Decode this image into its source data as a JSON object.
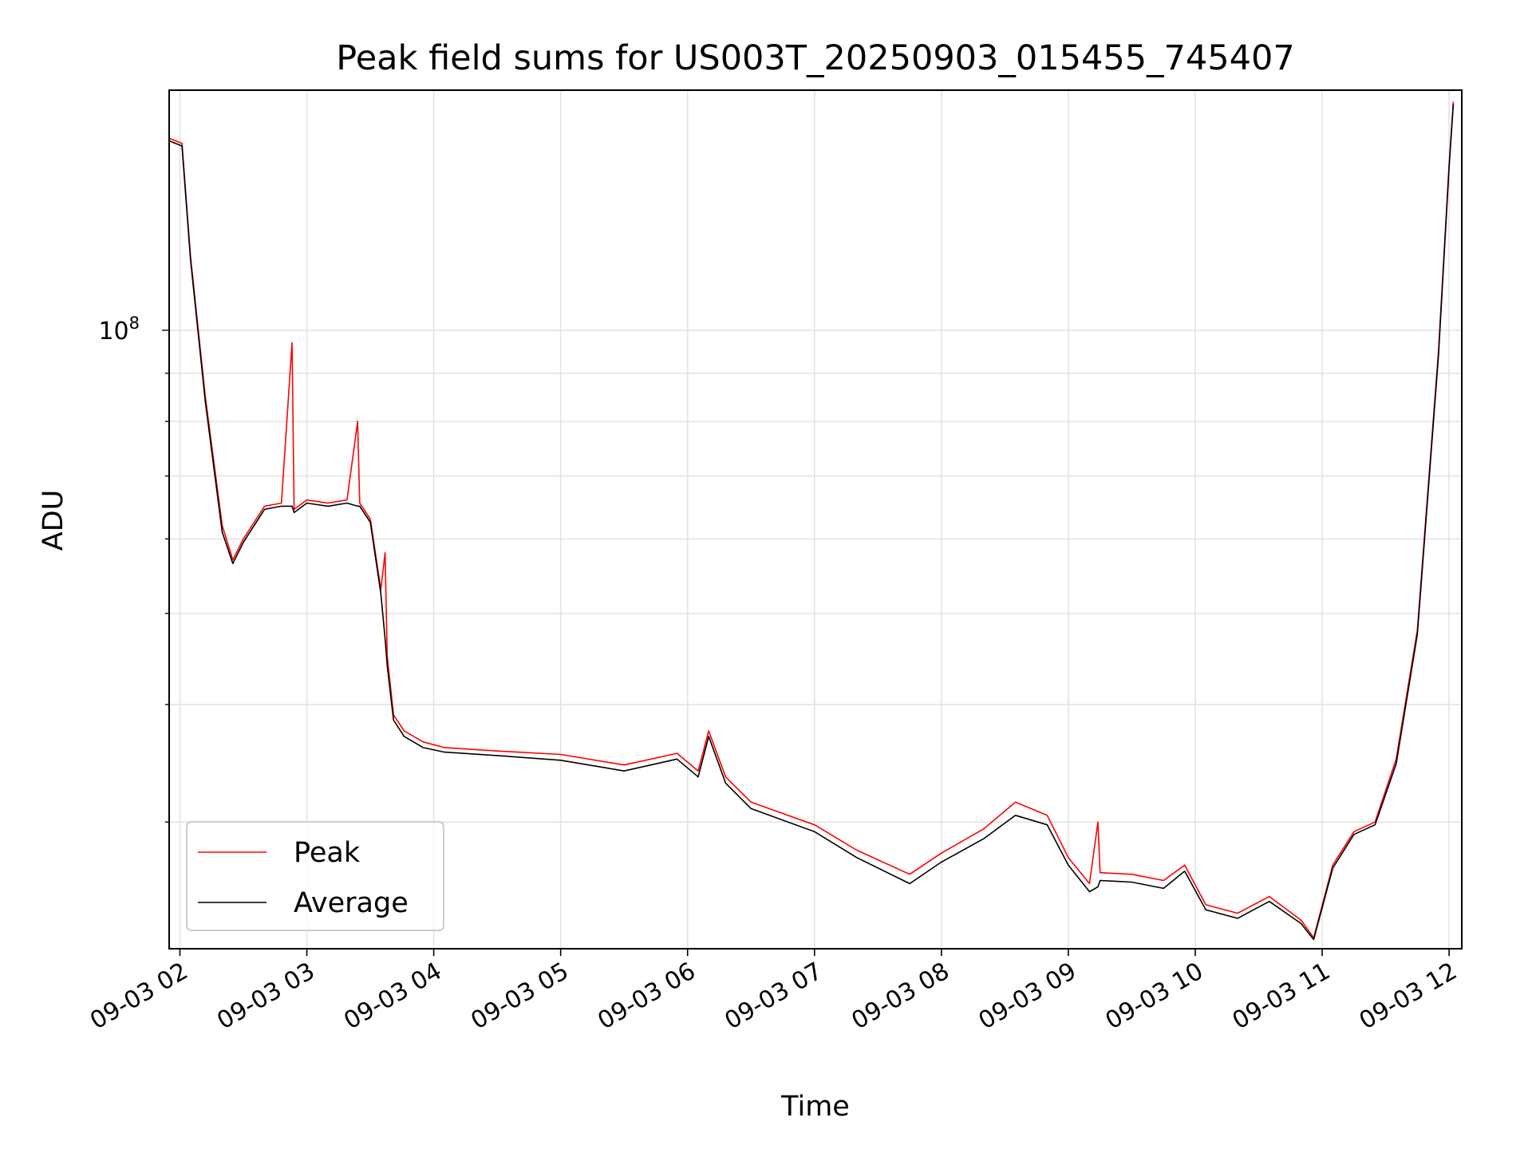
{
  "chart_data": {
    "type": "line",
    "title": "Peak field sums for US003T_20250903_015455_745407",
    "xlabel": "Time",
    "ylabel": "ADU",
    "y_scale": "log",
    "y_tick_label": {
      "base": "10",
      "exp": "8",
      "value": 100000000
    },
    "ylim": [
      22000000,
      180000000
    ],
    "xlim": [
      "2025-09-03 01:54:55",
      "2025-09-03 12:06:00"
    ],
    "x_ticks": [
      {
        "time": "2025-09-03 02:00",
        "label": "09-03 02"
      },
      {
        "time": "2025-09-03 03:00",
        "label": "09-03 03"
      },
      {
        "time": "2025-09-03 04:00",
        "label": "09-03 04"
      },
      {
        "time": "2025-09-03 05:00",
        "label": "09-03 05"
      },
      {
        "time": "2025-09-03 06:00",
        "label": "09-03 06"
      },
      {
        "time": "2025-09-03 07:00",
        "label": "09-03 07"
      },
      {
        "time": "2025-09-03 08:00",
        "label": "09-03 08"
      },
      {
        "time": "2025-09-03 09:00",
        "label": "09-03 09"
      },
      {
        "time": "2025-09-03 10:00",
        "label": "09-03 10"
      },
      {
        "time": "2025-09-03 11:00",
        "label": "09-03 11"
      },
      {
        "time": "2025-09-03 12:00",
        "label": "09-03 12"
      }
    ],
    "grid": true,
    "legend_position": "lower-left",
    "series": [
      {
        "name": "Peak",
        "color": "#ff0000",
        "points": [
          [
            "2025-09-03 01:54:55",
            160000000
          ],
          [
            "2025-09-03 02:01:00",
            158000000
          ],
          [
            "2025-09-03 02:05:00",
            120000000
          ],
          [
            "2025-09-03 02:12:00",
            85000000
          ],
          [
            "2025-09-03 02:20:00",
            62000000
          ],
          [
            "2025-09-03 02:25:00",
            57000000
          ],
          [
            "2025-09-03 02:30:00",
            60000000
          ],
          [
            "2025-09-03 02:40:00",
            65000000
          ],
          [
            "2025-09-03 02:48:00",
            65500000
          ],
          [
            "2025-09-03 02:53:00",
            97000000
          ],
          [
            "2025-09-03 02:54:00",
            64500000
          ],
          [
            "2025-09-03 03:00:00",
            66000000
          ],
          [
            "2025-09-03 03:10:00",
            65500000
          ],
          [
            "2025-09-03 03:19:00",
            66000000
          ],
          [
            "2025-09-03 03:24:00",
            80000000
          ],
          [
            "2025-09-03 03:25:00",
            65500000
          ],
          [
            "2025-09-03 03:30:00",
            63000000
          ],
          [
            "2025-09-03 03:35:00",
            53000000
          ],
          [
            "2025-09-03 03:37:00",
            58000000
          ],
          [
            "2025-09-03 03:38:00",
            45000000
          ],
          [
            "2025-09-03 03:41:00",
            39000000
          ],
          [
            "2025-09-03 03:46:00",
            37500000
          ],
          [
            "2025-09-03 03:55:00",
            36500000
          ],
          [
            "2025-09-03 04:05:00",
            36000000
          ],
          [
            "2025-09-03 04:30:00",
            35700000
          ],
          [
            "2025-09-03 05:00:00",
            35400000
          ],
          [
            "2025-09-03 05:30:00",
            34500000
          ],
          [
            "2025-09-03 05:55:00",
            35500000
          ],
          [
            "2025-09-03 06:05:00",
            34000000
          ],
          [
            "2025-09-03 06:10:00",
            37500000
          ],
          [
            "2025-09-03 06:18:00",
            33500000
          ],
          [
            "2025-09-03 06:30:00",
            31500000
          ],
          [
            "2025-09-03 07:00:00",
            29800000
          ],
          [
            "2025-09-03 07:20:00",
            28000000
          ],
          [
            "2025-09-03 07:45:00",
            26400000
          ],
          [
            "2025-09-03 08:00:00",
            27800000
          ],
          [
            "2025-09-03 08:20:00",
            29500000
          ],
          [
            "2025-09-03 08:35:00",
            31500000
          ],
          [
            "2025-09-03 08:50:00",
            30500000
          ],
          [
            "2025-09-03 09:00:00",
            27500000
          ],
          [
            "2025-09-03 09:10:00",
            25800000
          ],
          [
            "2025-09-03 09:14:00",
            30000000
          ],
          [
            "2025-09-03 09:15:00",
            26500000
          ],
          [
            "2025-09-03 09:30:00",
            26400000
          ],
          [
            "2025-09-03 09:45:00",
            26000000
          ],
          [
            "2025-09-03 09:55:00",
            27000000
          ],
          [
            "2025-09-03 10:05:00",
            24500000
          ],
          [
            "2025-09-03 10:20:00",
            24000000
          ],
          [
            "2025-09-03 10:35:00",
            25000000
          ],
          [
            "2025-09-03 10:50:00",
            23600000
          ],
          [
            "2025-09-03 10:56:00",
            22600000
          ],
          [
            "2025-09-03 11:05:00",
            27000000
          ],
          [
            "2025-09-03 11:15:00",
            29300000
          ],
          [
            "2025-09-03 11:25:00",
            30000000
          ],
          [
            "2025-09-03 11:35:00",
            35000000
          ],
          [
            "2025-09-03 11:45:00",
            48000000
          ],
          [
            "2025-09-03 11:55:00",
            95000000
          ],
          [
            "2025-09-03 12:00:00",
            150000000
          ],
          [
            "2025-09-03 12:02:00",
            175000000
          ]
        ]
      },
      {
        "name": "Average",
        "color": "#000000",
        "points": [
          [
            "2025-09-03 01:54:55",
            159000000
          ],
          [
            "2025-09-03 02:01:00",
            157000000
          ],
          [
            "2025-09-03 02:05:00",
            119000000
          ],
          [
            "2025-09-03 02:12:00",
            84000000
          ],
          [
            "2025-09-03 02:20:00",
            61000000
          ],
          [
            "2025-09-03 02:25:00",
            56500000
          ],
          [
            "2025-09-03 02:30:00",
            59500000
          ],
          [
            "2025-09-03 02:40:00",
            64500000
          ],
          [
            "2025-09-03 02:48:00",
            65000000
          ],
          [
            "2025-09-03 02:53:00",
            65000000
          ],
          [
            "2025-09-03 02:54:00",
            64000000
          ],
          [
            "2025-09-03 03:00:00",
            65500000
          ],
          [
            "2025-09-03 03:10:00",
            65000000
          ],
          [
            "2025-09-03 03:19:00",
            65500000
          ],
          [
            "2025-09-03 03:24:00",
            65000000
          ],
          [
            "2025-09-03 03:25:00",
            65000000
          ],
          [
            "2025-09-03 03:30:00",
            62500000
          ],
          [
            "2025-09-03 03:35:00",
            52500000
          ],
          [
            "2025-09-03 03:37:00",
            47000000
          ],
          [
            "2025-09-03 03:38:00",
            44000000
          ],
          [
            "2025-09-03 03:41:00",
            38500000
          ],
          [
            "2025-09-03 03:46:00",
            37000000
          ],
          [
            "2025-09-03 03:55:00",
            36000000
          ],
          [
            "2025-09-03 04:05:00",
            35600000
          ],
          [
            "2025-09-03 04:30:00",
            35300000
          ],
          [
            "2025-09-03 05:00:00",
            34900000
          ],
          [
            "2025-09-03 05:30:00",
            34000000
          ],
          [
            "2025-09-03 05:55:00",
            35000000
          ],
          [
            "2025-09-03 06:05:00",
            33500000
          ],
          [
            "2025-09-03 06:10:00",
            37000000
          ],
          [
            "2025-09-03 06:18:00",
            33000000
          ],
          [
            "2025-09-03 06:30:00",
            31000000
          ],
          [
            "2025-09-03 07:00:00",
            29300000
          ],
          [
            "2025-09-03 07:20:00",
            27500000
          ],
          [
            "2025-09-03 07:45:00",
            25800000
          ],
          [
            "2025-09-03 08:00:00",
            27200000
          ],
          [
            "2025-09-03 08:20:00",
            28800000
          ],
          [
            "2025-09-03 08:35:00",
            30500000
          ],
          [
            "2025-09-03 08:50:00",
            29800000
          ],
          [
            "2025-09-03 09:00:00",
            27000000
          ],
          [
            "2025-09-03 09:10:00",
            25300000
          ],
          [
            "2025-09-03 09:14:00",
            25600000
          ],
          [
            "2025-09-03 09:15:00",
            26000000
          ],
          [
            "2025-09-03 09:30:00",
            25900000
          ],
          [
            "2025-09-03 09:45:00",
            25500000
          ],
          [
            "2025-09-03 09:55:00",
            26600000
          ],
          [
            "2025-09-03 10:05:00",
            24200000
          ],
          [
            "2025-09-03 10:20:00",
            23700000
          ],
          [
            "2025-09-03 10:35:00",
            24700000
          ],
          [
            "2025-09-03 10:50:00",
            23400000
          ],
          [
            "2025-09-03 10:56:00",
            22500000
          ],
          [
            "2025-09-03 11:05:00",
            26800000
          ],
          [
            "2025-09-03 11:15:00",
            29100000
          ],
          [
            "2025-09-03 11:25:00",
            29800000
          ],
          [
            "2025-09-03 11:35:00",
            34600000
          ],
          [
            "2025-09-03 11:45:00",
            47500000
          ],
          [
            "2025-09-03 11:55:00",
            94000000
          ],
          [
            "2025-09-03 12:00:00",
            149000000
          ],
          [
            "2025-09-03 12:02:00",
            174000000
          ]
        ]
      }
    ]
  }
}
